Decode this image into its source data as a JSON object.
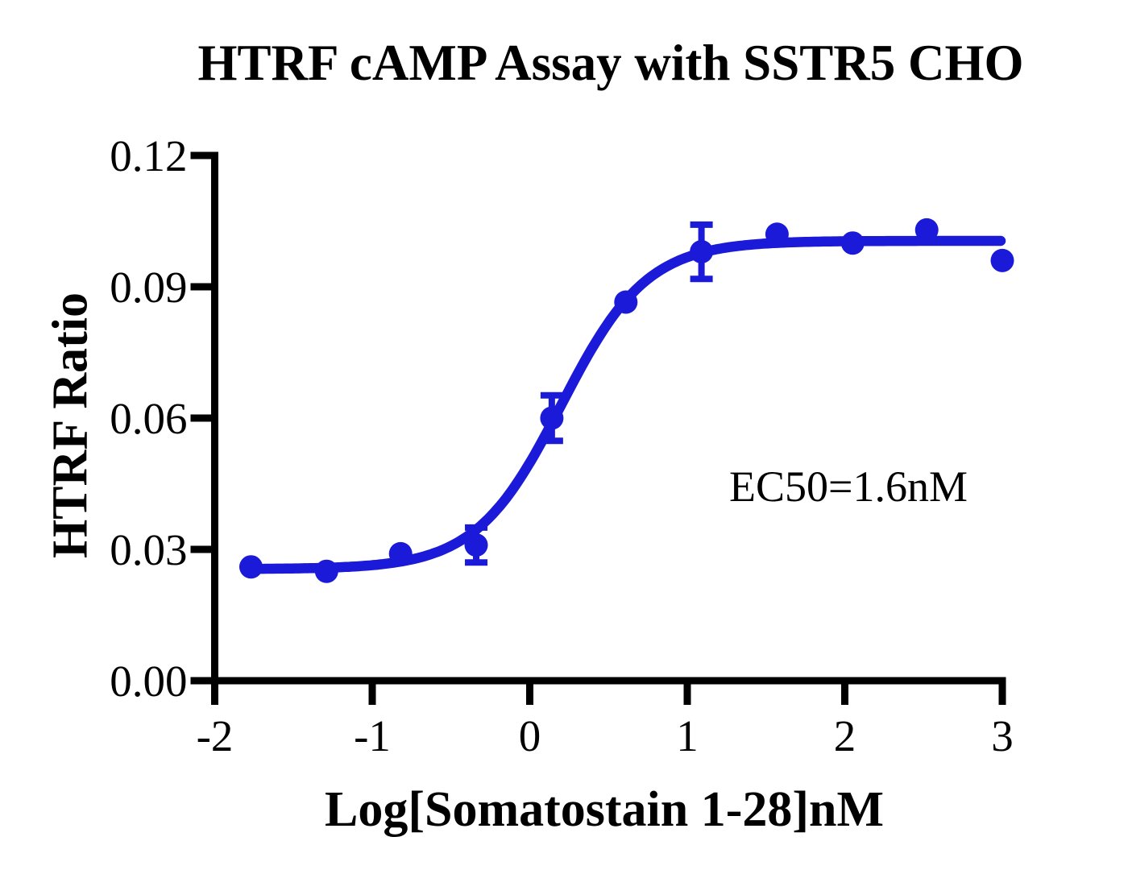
{
  "chart_data": {
    "type": "scatter",
    "title": "HTRF cAMP Assay with SSTR5 CHO",
    "xlabel": "Log[Somatostain 1-28]nM",
    "ylabel": "HTRF Ratio",
    "annotation": "EC50=1.6nM",
    "xlim": [
      -2,
      3
    ],
    "ylim": [
      0,
      0.12
    ],
    "xticks": [
      -2,
      -1,
      0,
      1,
      2,
      3
    ],
    "ytick_values": [
      0,
      0.03,
      0.06,
      0.09,
      0.12
    ],
    "ytick_labels": [
      "0.00",
      "0.03",
      "0.06",
      "0.09",
      "0.12"
    ],
    "grid": false,
    "legend": "none",
    "axis_color": "#000000",
    "series": [
      {
        "marker": "circle",
        "color": "#1A1AD8",
        "x": [
          -1.77,
          -1.29,
          -0.82,
          -0.34,
          0.14,
          0.61,
          1.09,
          1.57,
          2.05,
          2.52,
          3.0
        ],
        "y": [
          0.026,
          0.025,
          0.029,
          0.031,
          0.06,
          0.0865,
          0.098,
          0.102,
          0.1,
          0.103,
          0.096
        ],
        "yerr": [
          0,
          0,
          0,
          0.004,
          0.0052,
          0,
          0.0062,
          0,
          0,
          0,
          0
        ]
      }
    ],
    "fit_curve": {
      "model": "four-parameter-logistic",
      "bottom": 0.0255,
      "top": 0.1005,
      "logEC50": 0.2,
      "hillSlope": 1.6,
      "ec50_nM": 1.6
    }
  }
}
